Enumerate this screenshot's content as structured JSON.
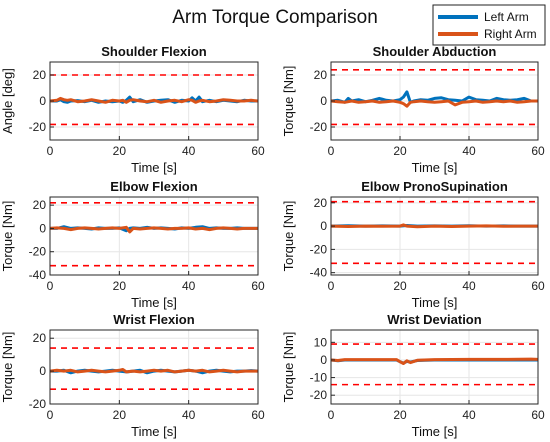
{
  "figure": {
    "title": "Arm Torque Comparison",
    "background": "#ffffff"
  },
  "legend": {
    "position": "top-right",
    "entries": [
      {
        "label": "Left Arm",
        "color": "#0072BD"
      },
      {
        "label": "Right Arm",
        "color": "#D95319"
      }
    ]
  },
  "threshold_color": "#ff0000",
  "chart_data": [
    {
      "type": "line",
      "title": "Shoulder Flexion",
      "xlabel": "Time [s]",
      "ylabel": "Angle [deg]",
      "xlim": [
        0,
        60
      ],
      "ylim": [
        -30,
        30
      ],
      "xticks": [
        "0",
        "20",
        "40",
        "60"
      ],
      "yticks": [
        "20",
        "0",
        "-20"
      ],
      "ytick_values": [
        20,
        0,
        -20
      ],
      "grid": true,
      "thresholds": [
        20,
        -18
      ],
      "series": [
        {
          "name": "Left Arm",
          "x": [
            0,
            2,
            3,
            4,
            5,
            6,
            8,
            10,
            12,
            14,
            16,
            18,
            20,
            21,
            22,
            23,
            24,
            26,
            28,
            30,
            32,
            34,
            36,
            38,
            40,
            41,
            42,
            43,
            44,
            46,
            48,
            50,
            52,
            54,
            56,
            58,
            60
          ],
          "y": [
            0,
            0,
            1,
            -0.5,
            -1,
            0,
            0.3,
            -0.5,
            0.5,
            -1,
            0,
            -0.5,
            0,
            -1,
            0.5,
            3,
            -0.5,
            1,
            -1,
            0,
            0.5,
            1,
            -1,
            0.5,
            0,
            2.5,
            0,
            3,
            -0.5,
            0.5,
            -0.5,
            0.5,
            0,
            -0.5,
            0.5,
            0,
            0
          ]
        },
        {
          "name": "Right Arm",
          "x": [
            0,
            2,
            3,
            4,
            5,
            6,
            8,
            10,
            12,
            14,
            16,
            18,
            20,
            21,
            22,
            23,
            24,
            26,
            28,
            30,
            32,
            34,
            36,
            38,
            40,
            41,
            42,
            43,
            44,
            46,
            48,
            50,
            52,
            54,
            56,
            58,
            60
          ],
          "y": [
            0,
            0.5,
            2,
            1,
            0.5,
            1,
            -0.5,
            0,
            1,
            0,
            -1,
            0.5,
            0,
            0.5,
            -1,
            0.5,
            1,
            0,
            -0.5,
            0.5,
            -1,
            0,
            0.5,
            -0.5,
            1,
            0.5,
            -1,
            0,
            0.5,
            -0.5,
            0,
            1,
            0.5,
            0,
            0,
            0.5,
            0
          ]
        }
      ]
    },
    {
      "type": "line",
      "title": "Shoulder Abduction",
      "xlabel": "Time [s]",
      "ylabel": "Torque [Nm]",
      "xlim": [
        0,
        60
      ],
      "ylim": [
        -30,
        30
      ],
      "xticks": [
        "0",
        "20",
        "40",
        "60"
      ],
      "yticks": [
        "20",
        "0",
        "-20"
      ],
      "ytick_values": [
        20,
        0,
        -20
      ],
      "grid": true,
      "thresholds": [
        24,
        -18
      ],
      "series": [
        {
          "name": "Left Arm",
          "x": [
            0,
            2,
            4,
            5,
            6,
            8,
            10,
            12,
            14,
            16,
            18,
            20,
            21,
            22,
            23,
            24,
            26,
            28,
            30,
            32,
            34,
            36,
            38,
            40,
            42,
            44,
            46,
            48,
            50,
            52,
            54,
            56,
            58,
            60
          ],
          "y": [
            0,
            0.5,
            -1,
            2,
            0,
            1,
            -0.5,
            0.5,
            2,
            0.5,
            0,
            1,
            3,
            7,
            -1,
            0,
            1,
            0.5,
            2,
            2.5,
            1,
            0.5,
            0,
            3,
            1,
            0.5,
            0,
            2,
            1,
            0.5,
            1,
            2,
            0,
            0
          ]
        },
        {
          "name": "Right Arm",
          "x": [
            0,
            2,
            4,
            6,
            8,
            10,
            12,
            14,
            16,
            18,
            20,
            21,
            22,
            23,
            24,
            26,
            28,
            30,
            32,
            34,
            36,
            38,
            40,
            42,
            44,
            46,
            48,
            50,
            52,
            54,
            56,
            58,
            60
          ],
          "y": [
            0,
            -0.5,
            -1,
            0,
            -1,
            -0.5,
            0,
            -1,
            -0.5,
            0,
            -1,
            -2,
            -4,
            -1,
            -0.5,
            0,
            -0.5,
            -1,
            -0.5,
            0,
            -3,
            -1,
            -0.5,
            0,
            -1,
            -0.5,
            0,
            -0.5,
            0,
            -1,
            -0.5,
            0,
            0
          ]
        }
      ]
    },
    {
      "type": "line",
      "title": "Elbow Flexion",
      "xlabel": "Time [s]",
      "ylabel": "Torque [Nm]",
      "xlim": [
        0,
        60
      ],
      "ylim": [
        -40,
        27
      ],
      "xticks": [
        "0",
        "20",
        "40",
        "60"
      ],
      "yticks": [
        "20",
        "0",
        "-20",
        "-40"
      ],
      "ytick_values": [
        20,
        0,
        -20,
        -40
      ],
      "grid": true,
      "thresholds": [
        22,
        -32
      ],
      "series": [
        {
          "name": "Left Arm",
          "x": [
            0,
            2,
            4,
            6,
            8,
            10,
            12,
            14,
            16,
            18,
            20,
            22,
            23,
            24,
            26,
            28,
            30,
            32,
            34,
            36,
            38,
            40,
            42,
            44,
            46,
            48,
            50,
            52,
            54,
            56,
            58,
            60
          ],
          "y": [
            0,
            0,
            1.5,
            0,
            0.5,
            0,
            -0.5,
            0.5,
            0,
            0,
            0.5,
            -2,
            0,
            0.5,
            0,
            1,
            0,
            0.5,
            0,
            -0.5,
            0.5,
            0,
            1,
            1.5,
            0,
            0.5,
            0,
            0,
            0.5,
            0,
            0,
            0
          ]
        },
        {
          "name": "Right Arm",
          "x": [
            0,
            2,
            4,
            6,
            8,
            10,
            12,
            14,
            16,
            18,
            20,
            22,
            23,
            24,
            26,
            28,
            30,
            32,
            34,
            36,
            38,
            40,
            42,
            44,
            46,
            48,
            50,
            52,
            54,
            56,
            58,
            60
          ],
          "y": [
            0,
            0.5,
            0,
            -1,
            0,
            0.5,
            0,
            -0.5,
            0,
            0.5,
            0,
            1,
            -3,
            0,
            -0.5,
            0,
            0.5,
            0,
            -0.5,
            0,
            0,
            0.5,
            -0.5,
            0,
            -1,
            0,
            0.5,
            0,
            -0.5,
            0,
            0,
            0
          ]
        }
      ]
    },
    {
      "type": "line",
      "title": "Elbow PronoSupination",
      "xlabel": "Time [s]",
      "ylabel": "Torque [Nm]",
      "xlim": [
        0,
        60
      ],
      "ylim": [
        -42,
        25
      ],
      "xticks": [
        "0",
        "20",
        "40",
        "60"
      ],
      "yticks": [
        "20",
        "0",
        "-20",
        "-40"
      ],
      "ytick_values": [
        20,
        0,
        -20,
        -40
      ],
      "grid": true,
      "thresholds": [
        21,
        -32
      ],
      "series": [
        {
          "name": "Left Arm",
          "x": [
            0,
            5,
            10,
            15,
            20,
            22,
            25,
            30,
            35,
            40,
            45,
            50,
            55,
            60
          ],
          "y": [
            0,
            0.3,
            0,
            0.2,
            0,
            0.5,
            0,
            0.2,
            0,
            0.3,
            0,
            0.2,
            0,
            0
          ]
        },
        {
          "name": "Right Arm",
          "x": [
            0,
            5,
            10,
            15,
            20,
            21,
            22,
            25,
            30,
            35,
            40,
            45,
            50,
            55,
            60
          ],
          "y": [
            0,
            -0.3,
            0,
            -0.2,
            0,
            1,
            0,
            -0.5,
            0,
            -0.3,
            0,
            0.2,
            -0.2,
            0,
            0
          ]
        }
      ]
    },
    {
      "type": "line",
      "title": "Wrist Flexion",
      "xlabel": "Time [s]",
      "ylabel": "Torque [Nm]",
      "xlim": [
        0,
        60
      ],
      "ylim": [
        -20,
        25
      ],
      "xticks": [
        "0",
        "20",
        "40",
        "60"
      ],
      "yticks": [
        "20",
        "0",
        "-20"
      ],
      "ytick_values": [
        20,
        0,
        -20
      ],
      "grid": true,
      "thresholds": [
        14,
        -11
      ],
      "series": [
        {
          "name": "Left Arm",
          "x": [
            0,
            2,
            4,
            6,
            8,
            10,
            12,
            14,
            16,
            18,
            20,
            22,
            24,
            26,
            28,
            30,
            32,
            34,
            36,
            38,
            40,
            42,
            44,
            46,
            48,
            50,
            52,
            54,
            56,
            58,
            60
          ],
          "y": [
            0,
            0,
            0.5,
            -1,
            0,
            0.5,
            0,
            -0.5,
            0,
            0.5,
            0,
            -0.5,
            0,
            0.5,
            -1,
            0,
            0.5,
            0,
            -0.5,
            0,
            0.5,
            0,
            -1,
            0,
            0.5,
            0,
            -0.5,
            0,
            0,
            0.3,
            0
          ]
        },
        {
          "name": "Right Arm",
          "x": [
            0,
            2,
            4,
            6,
            8,
            10,
            12,
            14,
            16,
            18,
            20,
            21,
            22,
            24,
            26,
            28,
            30,
            32,
            34,
            36,
            38,
            40,
            42,
            44,
            46,
            48,
            50,
            52,
            54,
            56,
            58,
            60
          ],
          "y": [
            0,
            0.5,
            0,
            0.5,
            -0.5,
            0,
            0.5,
            0,
            -0.5,
            0,
            0.5,
            1,
            -0.5,
            0,
            -0.5,
            0,
            0.5,
            0,
            0.5,
            -0.5,
            0,
            0.5,
            0,
            0.5,
            -0.5,
            0,
            0.5,
            0,
            -0.5,
            0,
            0,
            0
          ]
        }
      ]
    },
    {
      "type": "line",
      "title": "Wrist Deviation",
      "xlabel": "Time [s]",
      "ylabel": "Torque [Nm]",
      "xlim": [
        0,
        60
      ],
      "ylim": [
        -25,
        17
      ],
      "xticks": [
        "0",
        "20",
        "40",
        "60"
      ],
      "yticks": [
        "10",
        "0",
        "-10",
        "-20"
      ],
      "ytick_values": [
        10,
        0,
        -10,
        -20
      ],
      "grid": true,
      "thresholds": [
        9,
        -14
      ],
      "series": [
        {
          "name": "Left Arm",
          "x": [
            0,
            2,
            4,
            10,
            15,
            19,
            20,
            21,
            22,
            23,
            25,
            30,
            40,
            50,
            58,
            60
          ],
          "y": [
            0,
            -0.5,
            0,
            0,
            0,
            0,
            -1,
            -1.8,
            -0.8,
            -1.2,
            -0.3,
            0,
            0,
            0,
            0,
            0
          ]
        },
        {
          "name": "Right Arm",
          "x": [
            0,
            2,
            4,
            10,
            15,
            19,
            20,
            21,
            22,
            23,
            25,
            30,
            40,
            50,
            58,
            60
          ],
          "y": [
            0,
            -0.3,
            0.2,
            0.2,
            0.2,
            0.2,
            -1,
            -2,
            -0.5,
            -1.5,
            -0.2,
            0.2,
            0.3,
            0.3,
            0.5,
            0.3
          ]
        }
      ]
    }
  ]
}
